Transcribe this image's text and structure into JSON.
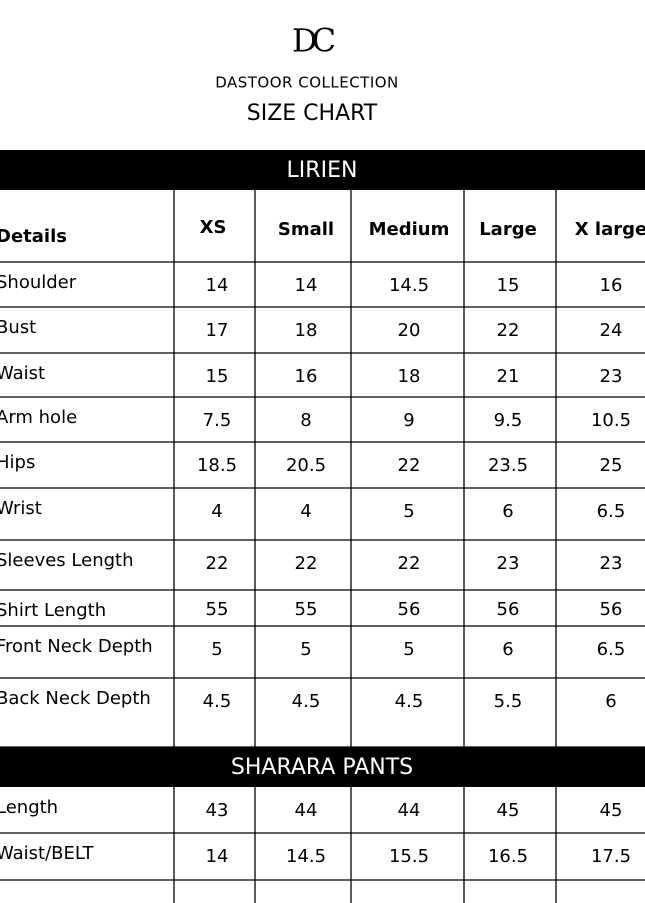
{
  "header": {
    "logo": "DC",
    "brand": "DASTOOR COLLECTION",
    "title": "SIZE CHART"
  },
  "sections": [
    {
      "title": "LIRIEN",
      "columns": [
        "Details",
        "XS",
        "Small",
        "Medium",
        "Large",
        "X large"
      ],
      "rows": [
        [
          "Shoulder",
          14,
          14,
          14.5,
          15,
          16
        ],
        [
          "Bust",
          17,
          18,
          20,
          22,
          24
        ],
        [
          "Waist",
          15,
          16,
          18,
          21,
          23
        ],
        [
          "Arm hole",
          7.5,
          8,
          9,
          9.5,
          10.5
        ],
        [
          "Hips",
          18.5,
          20.5,
          22,
          23.5,
          25
        ],
        [
          "Wrist",
          4,
          4,
          5,
          6,
          6.5
        ],
        [
          "Sleeves Length",
          22,
          22,
          22,
          23,
          23
        ],
        [
          "Shirt Length",
          55,
          55,
          56,
          56,
          56
        ],
        [
          "Front Neck Depth",
          5,
          5,
          5,
          6,
          6.5
        ],
        [
          "Back Neck Depth",
          4.5,
          4.5,
          4.5,
          5.5,
          6
        ]
      ]
    },
    {
      "title": "SHARARA PANTS",
      "rows": [
        [
          "Length",
          43,
          44,
          44,
          45,
          45
        ],
        [
          "Waist/BELT",
          14,
          14.5,
          15.5,
          16.5,
          17.5
        ]
      ]
    }
  ]
}
